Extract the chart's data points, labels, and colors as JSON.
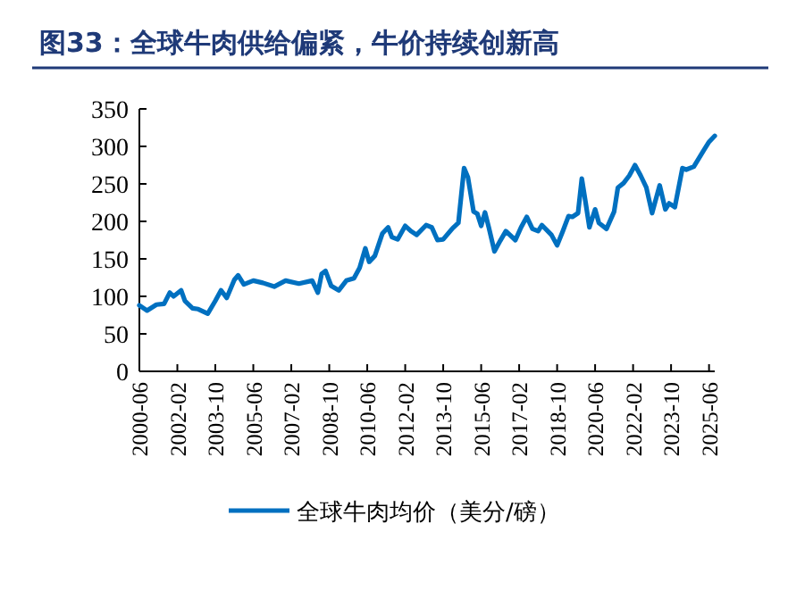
{
  "chart_data": {
    "type": "line",
    "title": "图33：全球牛肉供给偏紧，牛价持续创新高",
    "x": [
      "2000-06",
      "2000-10",
      "2001-03",
      "2001-07",
      "2001-10",
      "2001-12",
      "2002-04",
      "2002-06",
      "2002-10",
      "2003-01",
      "2003-06",
      "2003-10",
      "2004-01",
      "2004-04",
      "2004-08",
      "2004-10",
      "2005-01",
      "2005-06",
      "2005-11",
      "2006-05",
      "2006-11",
      "2007-06",
      "2008-01",
      "2008-04",
      "2008-06",
      "2008-08",
      "2008-11",
      "2009-03",
      "2009-07",
      "2009-11",
      "2010-02",
      "2010-05",
      "2010-07",
      "2010-10",
      "2011-02",
      "2011-05",
      "2011-07",
      "2011-10",
      "2012-02",
      "2012-05",
      "2012-08",
      "2013-01",
      "2013-04",
      "2013-07",
      "2013-10",
      "2014-03",
      "2014-06",
      "2014-09",
      "2014-11",
      "2015-02",
      "2015-04",
      "2015-06",
      "2015-08",
      "2015-10",
      "2016-01",
      "2016-04",
      "2016-07",
      "2016-12",
      "2017-03",
      "2017-06",
      "2017-09",
      "2017-12",
      "2018-02",
      "2018-07",
      "2018-10",
      "2019-01",
      "2019-04",
      "2019-06",
      "2019-09",
      "2019-11",
      "2020-01",
      "2020-03",
      "2020-06",
      "2020-08",
      "2020-12",
      "2021-04",
      "2021-06",
      "2021-09",
      "2021-12",
      "2022-03",
      "2022-06",
      "2022-09",
      "2022-12",
      "2023-04",
      "2023-07",
      "2023-09",
      "2023-12",
      "2024-04",
      "2024-06",
      "2024-10",
      "2025-03",
      "2025-06",
      "2025-09"
    ],
    "series": [
      {
        "name": "全球牛肉均价（美分/磅）",
        "color": "#0070c0",
        "values": [
          88,
          81,
          89,
          90,
          105,
          100,
          108,
          94,
          84,
          83,
          77,
          94,
          108,
          98,
          122,
          128,
          116,
          121,
          118,
          113,
          121,
          117,
          121,
          105,
          130,
          134,
          114,
          108,
          121,
          124,
          138,
          164,
          146,
          154,
          184,
          192,
          179,
          176,
          194,
          187,
          182,
          195,
          192,
          175,
          176,
          191,
          198,
          271,
          259,
          213,
          210,
          194,
          212,
          192,
          160,
          174,
          187,
          175,
          192,
          206,
          190,
          187,
          195,
          182,
          168,
          187,
          207,
          206,
          211,
          257,
          225,
          192,
          216,
          198,
          190,
          213,
          245,
          251,
          261,
          275,
          261,
          245,
          211,
          248,
          216,
          224,
          219,
          271,
          269,
          273,
          294,
          306,
          314
        ]
      }
    ],
    "xlim": [
      "2000-06",
      "2025-09"
    ],
    "xticks": [
      "2000-06",
      "2002-02",
      "2003-10",
      "2005-06",
      "2007-02",
      "2008-10",
      "2010-06",
      "2012-02",
      "2013-10",
      "2015-06",
      "2017-02",
      "2018-10",
      "2020-06",
      "2022-02",
      "2023-10",
      "2025-06"
    ],
    "ylim": [
      0,
      350
    ],
    "yticks": [
      0,
      50,
      100,
      150,
      200,
      250,
      300,
      350
    ],
    "legend": "bottom",
    "grid": false,
    "marker": "none",
    "line_style": "solid"
  }
}
